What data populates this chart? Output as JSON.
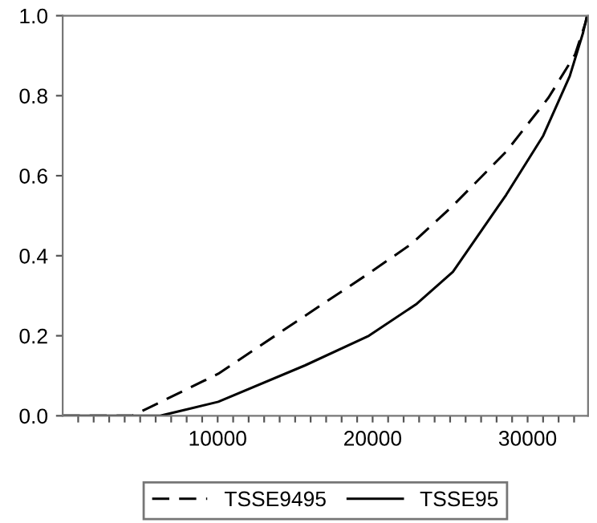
{
  "chart_data": {
    "type": "line",
    "series": [
      {
        "name": "TSSE9495",
        "color": "#000000",
        "line_style": "dashed",
        "x": [
          0,
          4500,
          10040,
          15640,
          19760,
          22520,
          25180,
          28613,
          31347,
          33063,
          33750,
          33836
        ],
        "values": [
          0,
          0,
          0.105,
          0.25,
          0.356,
          0.43,
          0.525,
          0.66,
          0.795,
          0.903,
          0.984,
          1.0
        ]
      },
      {
        "name": "TSSE95",
        "color": "#000000",
        "line_style": "solid",
        "x": [
          0,
          6300,
          10040,
          15640,
          19760,
          22850,
          25180,
          28613,
          31007,
          32720,
          33576,
          33836
        ],
        "values": [
          0,
          0,
          0.035,
          0.126,
          0.2,
          0.28,
          0.36,
          0.552,
          0.7,
          0.849,
          0.957,
          1.0
        ]
      }
    ],
    "xlim": [
      0,
      33900
    ],
    "ylim": [
      0,
      1.0
    ],
    "xticks": [
      {
        "value": 1000,
        "label": null
      },
      {
        "value": 2000,
        "label": null
      },
      {
        "value": 3000,
        "label": null
      },
      {
        "value": 4000,
        "label": null
      },
      {
        "value": 5000,
        "label": null
      },
      {
        "value": 6000,
        "label": null
      },
      {
        "value": 7000,
        "label": null
      },
      {
        "value": 8000,
        "label": null
      },
      {
        "value": 9000,
        "label": null
      },
      10000,
      {
        "value": 11000,
        "label": null
      },
      {
        "value": 12000,
        "label": null
      },
      {
        "value": 13000,
        "label": null
      },
      {
        "value": 14000,
        "label": null
      },
      {
        "value": 15000,
        "label": null
      },
      {
        "value": 16000,
        "label": null
      },
      {
        "value": 17000,
        "label": null
      },
      {
        "value": 18000,
        "label": null
      },
      {
        "value": 19000,
        "label": null
      },
      20000,
      {
        "value": 21000,
        "label": null
      },
      {
        "value": 22000,
        "label": null
      },
      {
        "value": 23000,
        "label": null
      },
      {
        "value": 24000,
        "label": null
      },
      {
        "value": 25000,
        "label": null
      },
      {
        "value": 26000,
        "label": null
      },
      {
        "value": 27000,
        "label": null
      },
      {
        "value": 28000,
        "label": null
      },
      {
        "value": 29000,
        "label": null
      },
      30000,
      {
        "value": 31000,
        "label": null
      },
      {
        "value": 32000,
        "label": null
      },
      {
        "value": 33000,
        "label": null
      }
    ],
    "yticks": [
      {
        "value": 0,
        "label": "0.0"
      },
      {
        "value": 0.2,
        "label": "0.2"
      },
      {
        "value": 0.4,
        "label": "0.4"
      },
      {
        "value": 0.6,
        "label": "0.6"
      },
      {
        "value": 0.8,
        "label": "0.8"
      },
      {
        "value": 1.0,
        "label": "1.0"
      }
    ],
    "grid": false,
    "legend": "bottom",
    "marker": "none"
  }
}
